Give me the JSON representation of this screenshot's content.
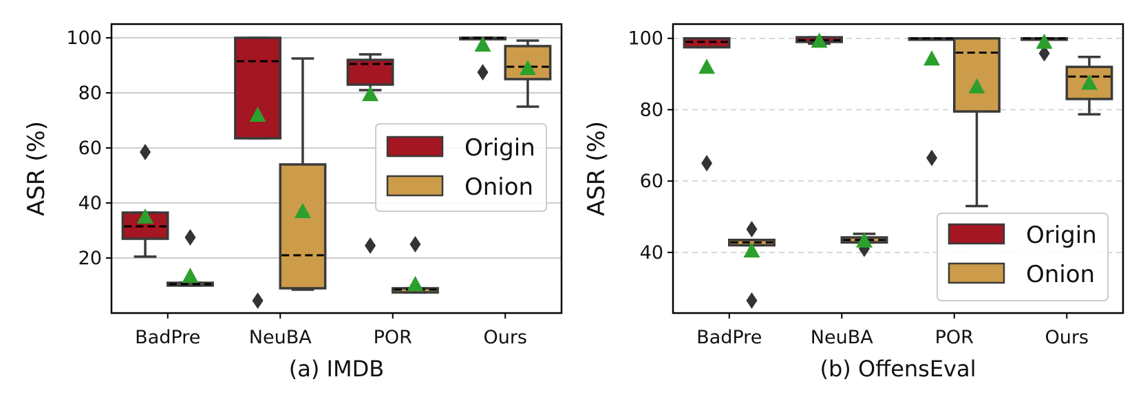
{
  "colors": {
    "origin": "#a31622",
    "onion": "#cc9c4a",
    "mean_marker": "#2ca02c",
    "outlier": "#333333",
    "box_edge": "#3a3a3a",
    "grid": "#cccccc"
  },
  "chart_data": [
    {
      "type": "box",
      "caption": "(a) IMDB",
      "ylabel": "ASR (%)",
      "ylim": [
        0,
        105
      ],
      "yticks": [
        20,
        40,
        60,
        80,
        100
      ],
      "categories": [
        "BadPre",
        "NeuBA",
        "POR",
        "Ours"
      ],
      "grid": "solid",
      "legend": {
        "position": "right",
        "entries": [
          "Origin",
          "Onion"
        ]
      },
      "series": [
        {
          "name": "Origin",
          "color_key": "origin",
          "boxes": [
            {
              "category": "BadPre",
              "whisker_low": 20.5,
              "q1": 27,
              "median": 31.5,
              "q3": 36.5,
              "whisker_high": 36.5,
              "mean": 35,
              "outliers": [
                58.5
              ]
            },
            {
              "category": "NeuBA",
              "whisker_low": 63.5,
              "q1": 63.5,
              "median": 91.5,
              "q3": 100,
              "whisker_high": 100,
              "mean": 72,
              "outliers": [
                4.5
              ]
            },
            {
              "category": "POR",
              "whisker_low": 81,
              "q1": 83,
              "median": 90.5,
              "q3": 92,
              "whisker_high": 94,
              "mean": 79.5,
              "outliers": [
                24.5
              ]
            },
            {
              "category": "Ours",
              "whisker_low": 100,
              "q1": 100,
              "median": 100,
              "q3": 100,
              "whisker_high": 100,
              "mean": 97.5,
              "outliers": [
                87.5
              ]
            }
          ]
        },
        {
          "name": "Onion",
          "color_key": "onion",
          "boxes": [
            {
              "category": "BadPre",
              "whisker_low": 10,
              "q1": 10,
              "median": 10.5,
              "q3": 11,
              "whisker_high": 11,
              "mean": 13.5,
              "outliers": [
                27.5
              ]
            },
            {
              "category": "NeuBA",
              "whisker_low": 8.5,
              "q1": 9,
              "median": 21,
              "q3": 54,
              "whisker_high": 92.5,
              "mean": 37,
              "outliers": []
            },
            {
              "category": "POR",
              "whisker_low": 7.5,
              "q1": 7.5,
              "median": 8.5,
              "q3": 9,
              "whisker_high": 9,
              "mean": 10.5,
              "outliers": [
                25
              ]
            },
            {
              "category": "Ours",
              "whisker_low": 75,
              "q1": 85,
              "median": 89.5,
              "q3": 97,
              "whisker_high": 99,
              "mean": 89,
              "outliers": []
            }
          ]
        }
      ]
    },
    {
      "type": "box",
      "caption": "(b) OffensEval",
      "ylabel": "ASR (%)",
      "ylim": [
        23,
        104
      ],
      "yticks": [
        40,
        60,
        80,
        100
      ],
      "categories": [
        "BadPre",
        "NeuBA",
        "POR",
        "Ours"
      ],
      "grid": "dashed",
      "legend": {
        "position": "lower-right",
        "entries": [
          "Origin",
          "Onion"
        ]
      },
      "series": [
        {
          "name": "Origin",
          "color_key": "origin",
          "boxes": [
            {
              "category": "BadPre",
              "whisker_low": 97.5,
              "q1": 97.5,
              "median": 99,
              "q3": 100,
              "whisker_high": 100,
              "mean": 92,
              "outliers": [
                65
              ]
            },
            {
              "category": "NeuBA",
              "whisker_low": 98.5,
              "q1": 99,
              "median": 99.5,
              "q3": 100.3,
              "whisker_high": 100.3,
              "mean": 99.3,
              "outliers": []
            },
            {
              "category": "POR",
              "whisker_low": 100,
              "q1": 100,
              "median": 100,
              "q3": 100,
              "whisker_high": 100,
              "mean": 94.3,
              "outliers": [
                66.5
              ]
            },
            {
              "category": "Ours",
              "whisker_low": 100,
              "q1": 100,
              "median": 100,
              "q3": 100,
              "whisker_high": 100,
              "mean": 99,
              "outliers": [
                95.8
              ]
            }
          ]
        },
        {
          "name": "Onion",
          "color_key": "onion",
          "boxes": [
            {
              "category": "BadPre",
              "whisker_low": 42,
              "q1": 42,
              "median": 42.8,
              "q3": 43.5,
              "whisker_high": 43.5,
              "mean": 40.5,
              "outliers": [
                46.5,
                26.5
              ]
            },
            {
              "category": "NeuBA",
              "whisker_low": 42.8,
              "q1": 42.8,
              "median": 43.5,
              "q3": 44.2,
              "whisker_high": 45.2,
              "mean": 43.3,
              "outliers": [
                41
              ]
            },
            {
              "category": "POR",
              "whisker_low": 53,
              "q1": 79.5,
              "median": 96,
              "q3": 100,
              "whisker_high": 100,
              "mean": 86.5,
              "outliers": []
            },
            {
              "category": "Ours",
              "whisker_low": 78.7,
              "q1": 83,
              "median": 89.3,
              "q3": 92,
              "whisker_high": 94.8,
              "mean": 87.5,
              "outliers": []
            }
          ]
        }
      ]
    }
  ]
}
